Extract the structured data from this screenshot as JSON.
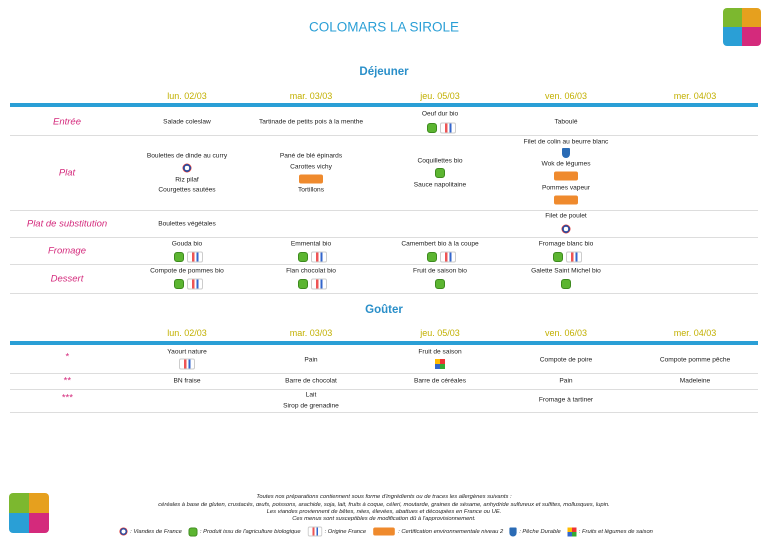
{
  "header": {
    "title": "COLOMARS LA SIROLE"
  },
  "lunch": {
    "heading": "Déjeuner",
    "days": [
      "lun. 02/03",
      "mar. 03/03",
      "jeu. 05/03",
      "ven. 06/03",
      "mer. 04/03"
    ],
    "rows": [
      {
        "label": "Entrée",
        "cells": [
          [
            "Salade coleslaw"
          ],
          [
            "Tartinade de petits pois à la menthe"
          ],
          [
            "Oeuf dur bio"
          ],
          [
            "Taboulé"
          ],
          []
        ]
      },
      {
        "label": "Plat",
        "cells": [
          [
            "Boulettes de dinde au curry",
            "Riz pilaf",
            "Courgettes sautées"
          ],
          [
            "Pané de blé épinards",
            "Carottes vichy",
            "Tortillons"
          ],
          [
            "Coquillettes bio",
            "Sauce napolitaine"
          ],
          [
            "Filet de colin au beurre blanc",
            "Wok de légumes",
            "Pommes vapeur"
          ],
          []
        ]
      },
      {
        "label": "Plat de substitution",
        "cells": [
          [
            "Boulettes végétales"
          ],
          [],
          [],
          [
            "Filet de poulet"
          ],
          []
        ]
      },
      {
        "label": "Fromage",
        "cells": [
          [
            "Gouda bio"
          ],
          [
            "Emmental bio"
          ],
          [
            "Camembert bio à la coupe"
          ],
          [
            "Fromage blanc bio"
          ],
          []
        ]
      },
      {
        "label": "Dessert",
        "cells": [
          [
            "Compote de pommes bio"
          ],
          [
            "Flan chocolat bio"
          ],
          [
            "Fruit de saison bio"
          ],
          [
            "Galette Saint Michel bio"
          ],
          []
        ]
      }
    ]
  },
  "snack": {
    "heading": "Goûter",
    "days": [
      "lun. 02/03",
      "mar. 03/03",
      "jeu. 05/03",
      "ven. 06/03",
      "mer. 04/03"
    ],
    "rows": [
      {
        "label": "*",
        "cells": [
          [
            "Yaourt nature"
          ],
          [
            "Pain"
          ],
          [
            "Fruit de saison"
          ],
          [
            "Compote de poire"
          ],
          [
            "Compote pomme pêche"
          ]
        ]
      },
      {
        "label": "**",
        "cells": [
          [
            "BN fraise"
          ],
          [
            "Barre de chocolat"
          ],
          [
            "Barre de céréales"
          ],
          [
            "Pain"
          ],
          [
            "Madeleine"
          ]
        ]
      },
      {
        "label": "***",
        "cells": [
          [],
          [
            "Lait",
            "Sirop de grenadine"
          ],
          [],
          [
            "Fromage à tartiner"
          ],
          []
        ]
      }
    ]
  },
  "footer": {
    "lines": [
      "Toutes nos préparations contiennent sous forme d'ingrédients ou de traces les allergènes suivants :",
      "céréales à base de gluten, crustacés, œufs, poissons, arachide, soja, lait, fruits à coque, céleri, moutarde, graines de sésame, anhydride sulfureux et sulfites, mollusques, lupin.",
      "Les viandes proviennent de bêtes, nées, élevées, abattues et découpées en France ou UE.",
      "Ces menus sont susceptibles de modification dû à l'approvisionnement."
    ],
    "legend": [
      ": Viandes de France",
      ": Produit issu de l'agriculture biologique",
      ": Origine France",
      ": Certification environnementale niveau 2",
      ": Pêche Durable",
      ": Fruits et légumes de saison"
    ]
  }
}
